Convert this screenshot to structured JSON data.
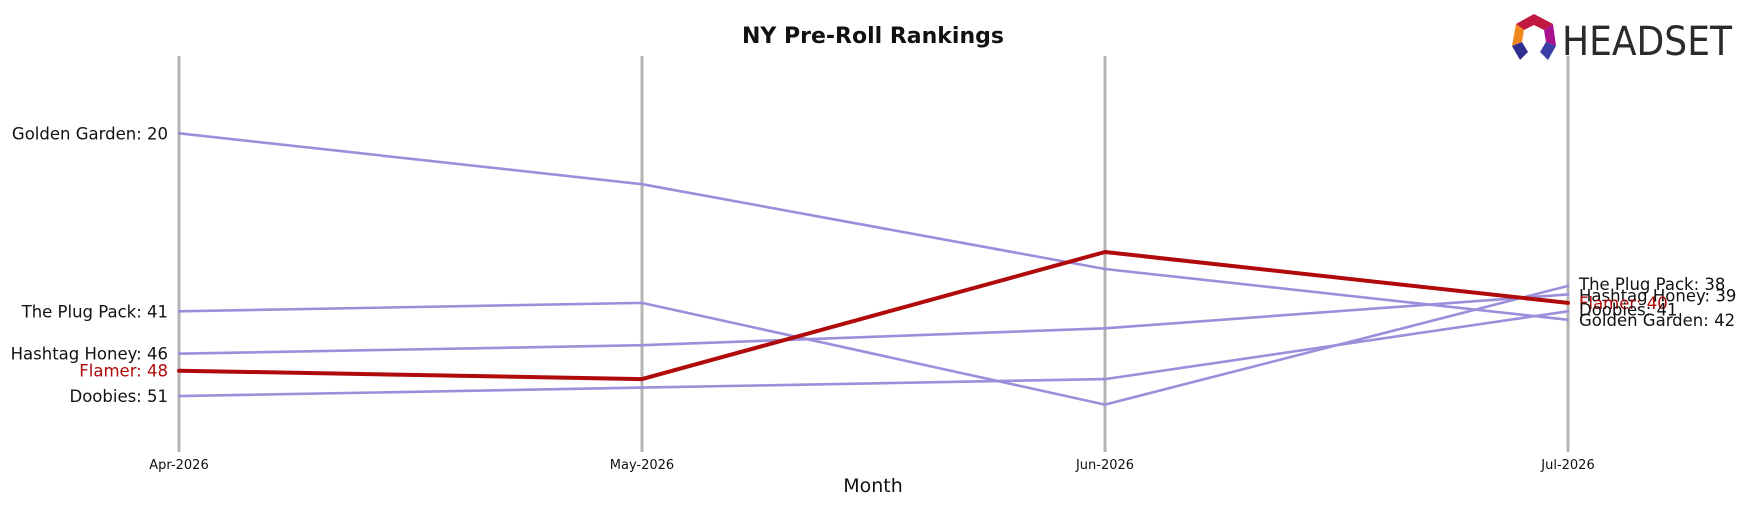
{
  "brand": {
    "name": "HEADSET"
  },
  "chart_data": {
    "type": "line",
    "title": "NY Pre-Roll Rankings",
    "xlabel": "Month",
    "ylabel": "",
    "categories": [
      "Apr-2026",
      "May-2026",
      "Jun-2026",
      "Jul-2026"
    ],
    "y_inverted": true,
    "ylim": [
      55,
      13
    ],
    "grid": "vertical lines at each month",
    "series": [
      {
        "name": "Golden Garden",
        "values": [
          20,
          26,
          36,
          42
        ],
        "color": "#9b8fdb",
        "highlight": false
      },
      {
        "name": "The Plug Pack",
        "values": [
          41,
          40,
          52,
          38
        ],
        "color": "#9b8fdb",
        "highlight": false
      },
      {
        "name": "Hashtag Honey",
        "values": [
          46,
          45,
          43,
          39
        ],
        "color": "#9b8fdb",
        "highlight": false
      },
      {
        "name": "Flamer",
        "values": [
          48,
          49,
          34,
          40
        ],
        "color": "#b00a0a",
        "highlight": true
      },
      {
        "name": "Doobies",
        "values": [
          51,
          50,
          49,
          41
        ],
        "color": "#9b8fdb",
        "highlight": false
      }
    ]
  }
}
